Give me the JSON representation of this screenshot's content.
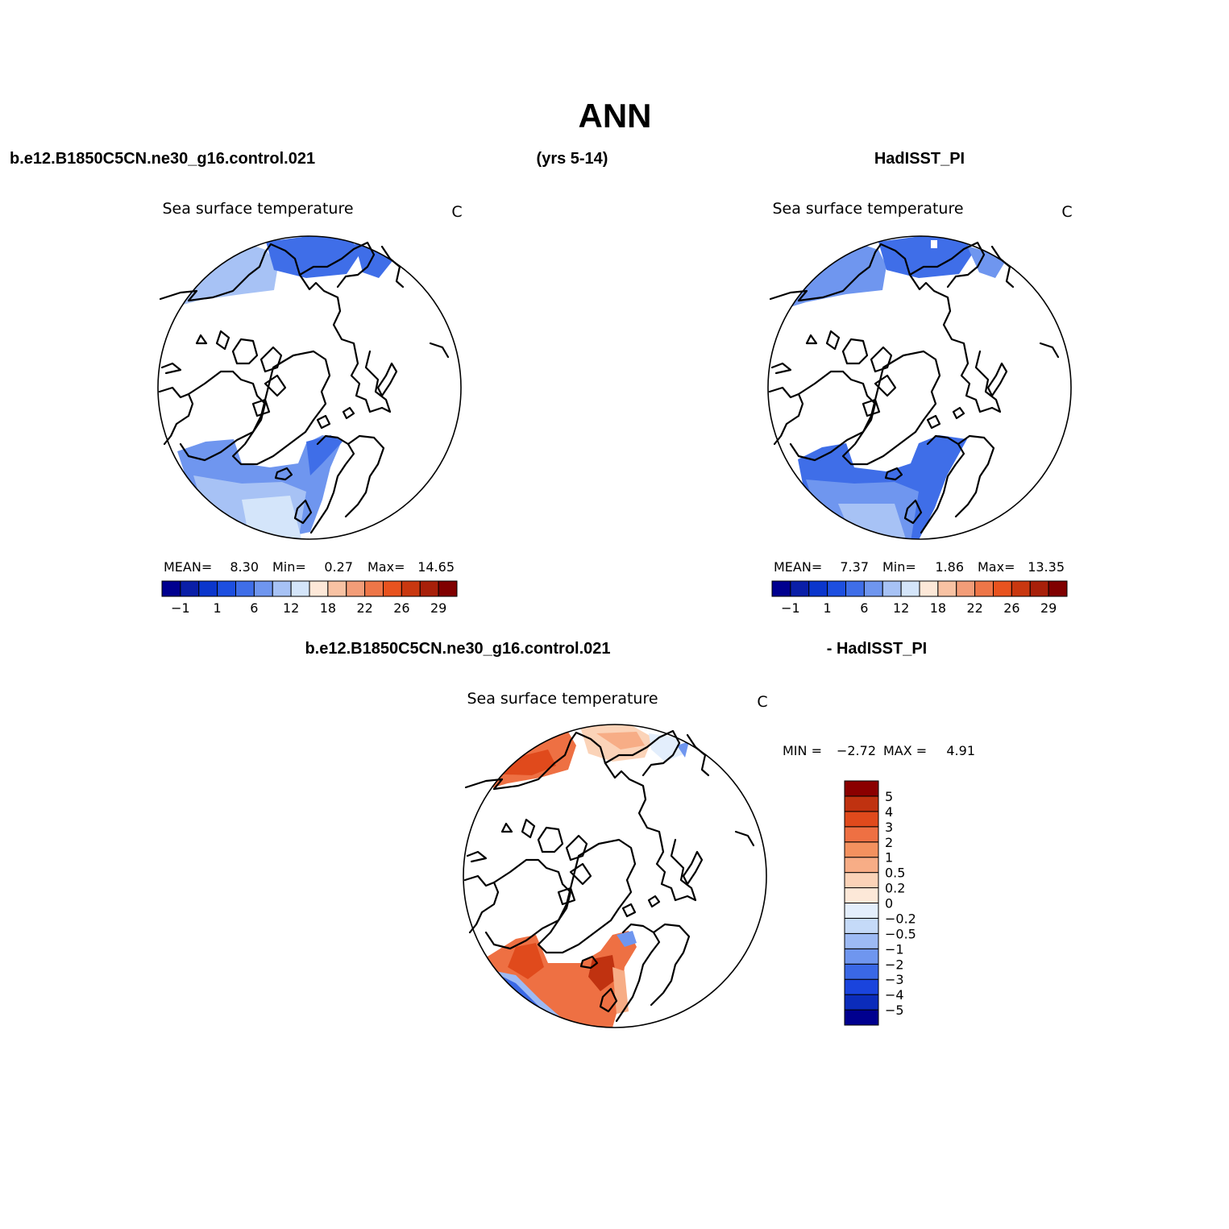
{
  "figure": {
    "title": "ANN",
    "case_name": "b.e12.B1850C5CN.ne30_g16.control.021",
    "years": "(yrs 5-14)",
    "obs_name": "HadISST_PI",
    "diff_case": "b.e12.B1850C5CN.ne30_g16.control.021",
    "diff_obs": "- HadISST_PI"
  },
  "panels": {
    "model": {
      "variable": "Sea surface temperature",
      "units": "C",
      "mean_label": "MEAN=",
      "mean": "8.30",
      "min_label": "Min=",
      "min": "0.27",
      "max_label": "Max=",
      "max": "14.65"
    },
    "obs": {
      "variable": "Sea surface temperature",
      "units": "C",
      "mean_label": "MEAN=",
      "mean": "7.37",
      "min_label": "Min=",
      "min": "1.86",
      "max_label": "Max=",
      "max": "13.35"
    },
    "diff": {
      "variable": "Sea surface temperature",
      "units": "C",
      "min_label": "MIN =",
      "min": "−2.72",
      "max_label": "MAX =",
      "max": "4.91"
    }
  },
  "colorbars": {
    "abs": {
      "colors": [
        "#00008f",
        "#0a1fa8",
        "#0b36cc",
        "#1d4fe0",
        "#3f6ee8",
        "#6f96ef",
        "#a7c2f5",
        "#d4e5fa",
        "#fde8d8",
        "#f8c2a3",
        "#f39d78",
        "#ee7648",
        "#e8531f",
        "#c93810",
        "#a8200a",
        "#800000"
      ],
      "tick_labels": [
        "−1",
        "1",
        "6",
        "12",
        "18",
        "22",
        "26",
        "29"
      ]
    },
    "diff": {
      "colors": [
        "#00008f",
        "#0b2cbb",
        "#1a44dd",
        "#3a68e6",
        "#6f96ef",
        "#9dbaf4",
        "#c5daf8",
        "#e3eefc",
        "#fde8d8",
        "#fbd3b8",
        "#f7ad86",
        "#f3915f",
        "#ee7043",
        "#e04a1c",
        "#c03210",
        "#8b0000"
      ],
      "tick_labels": [
        "5",
        "4",
        "3",
        "2",
        "1",
        "0.5",
        "0.2",
        "0",
        "−0.2",
        "−0.5",
        "−1",
        "−2",
        "−3",
        "−4",
        "−5"
      ]
    }
  }
}
